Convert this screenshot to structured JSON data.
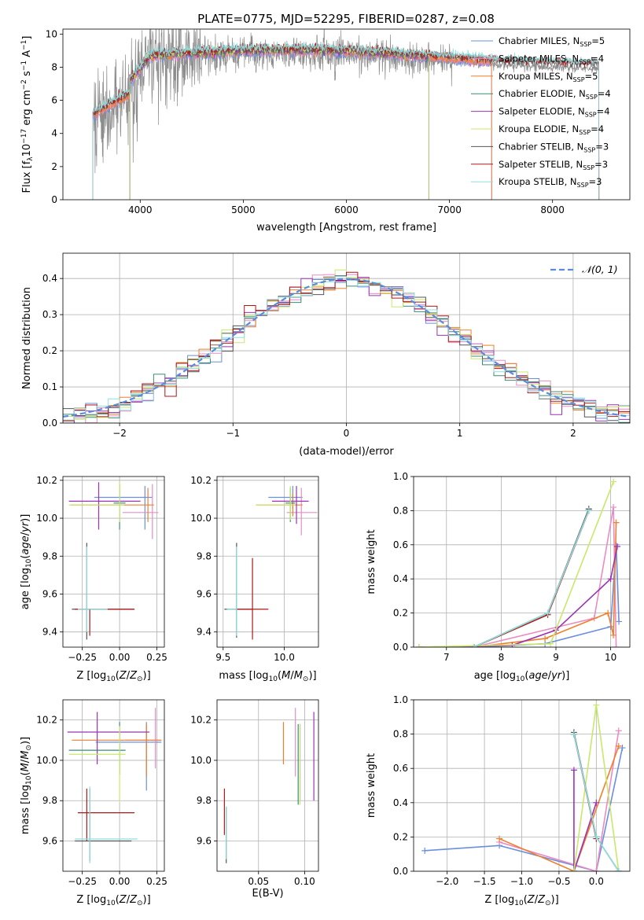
{
  "figure": {
    "title": "PLATE=0775, MJD=52295, FIBERID=0287, z=0.08"
  },
  "colors": {
    "chabrier_miles": "#6a8fde",
    "salpeter_miles": "#e88cc4",
    "kroupa_miles": "#f07f2a",
    "chabrier_elodie": "#3c8c78",
    "salpeter_elodie": "#9b34b4",
    "kroupa_elodie": "#c8e86a",
    "chabrier_stelib": "#555555",
    "salpeter_stelib": "#b01818",
    "kroupa_stelib": "#8ee0e0",
    "data": "#8c8c8c",
    "gaussian": "#5b8cdb",
    "grid": "#b0b0b0"
  },
  "chart_data": [
    {
      "id": "spectrum",
      "type": "line",
      "xlabel": "wavelength [Angstrom, rest frame]",
      "ylabel": "Flux [f_λ10^-17 erg cm^-2 s^-1 A^-1]",
      "xlim": [
        3250,
        8750
      ],
      "ylim": [
        0,
        10.3
      ],
      "xticks": [
        4000,
        5000,
        6000,
        7000,
        8000
      ],
      "yticks": [
        0,
        2,
        4,
        6,
        8,
        10
      ],
      "grid": false,
      "legend_position": "top-right",
      "observed_flux_range": [
        3550,
        8450
      ],
      "series": [
        {
          "name": "Chabrier MILES, N_SSP=5",
          "key": "chabrier_miles",
          "x": [
            3540,
            7410
          ]
        },
        {
          "name": "Salpeter MILES, N_SSP=4",
          "key": "salpeter_miles",
          "x": [
            3540,
            7410
          ]
        },
        {
          "name": "Kroupa MILES, N_SSP=5",
          "key": "kroupa_miles",
          "x": [
            3540,
            7410
          ]
        },
        {
          "name": "Chabrier ELODIE, N_SSP=4",
          "key": "chabrier_elodie",
          "x": [
            3900,
            6800
          ]
        },
        {
          "name": "Salpeter ELODIE, N_SSP=4",
          "key": "salpeter_elodie",
          "x": [
            3900,
            6800
          ]
        },
        {
          "name": "Kroupa ELODIE, N_SSP=4",
          "key": "kroupa_elodie",
          "x": [
            3900,
            6800
          ]
        },
        {
          "name": "Chabrier STELIB, N_SSP=3",
          "key": "chabrier_stelib",
          "x": [
            3540,
            8450
          ]
        },
        {
          "name": "Salpeter STELIB, N_SSP=3",
          "key": "salpeter_stelib",
          "x": [
            3540,
            8450
          ]
        },
        {
          "name": "Kroupa STELIB, N_SSP=3",
          "key": "kroupa_stelib",
          "x": [
            3540,
            8450
          ]
        }
      ]
    },
    {
      "id": "residuals",
      "type": "line",
      "xlabel": "(data-model)/error",
      "ylabel": "Normed distribution",
      "xlim": [
        -2.5,
        2.5
      ],
      "ylim": [
        0,
        0.47
      ],
      "xticks": [
        -2,
        -1,
        0,
        1,
        2
      ],
      "yticks": [
        0.0,
        0.1,
        0.2,
        0.3,
        0.4
      ],
      "grid": true,
      "legend_position": "top-right",
      "bin_width": 0.1,
      "series": [
        {
          "name": "𝒩(0, 1)",
          "key": "gaussian",
          "dashed": true
        }
      ]
    },
    {
      "id": "age_vs_Z",
      "type": "scatter",
      "xlabel": "Z [log10(Z/Z⊙)]",
      "ylabel": "age  [log10(age/yr)]",
      "xlim": [
        -0.38,
        0.3
      ],
      "ylim": [
        9.32,
        10.22
      ],
      "xticks": [
        -0.25,
        0.0,
        0.25
      ],
      "yticks": [
        9.4,
        9.6,
        9.8,
        10.0,
        10.2
      ],
      "grid": true,
      "points": [
        {
          "key": "chabrier_miles",
          "x": 0.17,
          "y": 10.11,
          "xerr": [
            0.34,
            0.05
          ],
          "yerr": [
            0.17,
            0.06
          ]
        },
        {
          "key": "salpeter_miles",
          "x": 0.22,
          "y": 10.03,
          "xerr": [
            0.2,
            0.04
          ],
          "yerr": [
            0.14,
            0.15
          ]
        },
        {
          "key": "kroupa_miles",
          "x": 0.19,
          "y": 10.07,
          "xerr": [
            0.52,
            0.04
          ],
          "yerr": [
            0.09,
            0.09
          ]
        },
        {
          "key": "chabrier_elodie",
          "x": 0.0,
          "y": 10.08,
          "xerr": [
            0.04,
            0.04
          ],
          "yerr": [
            0.14,
            0.1
          ]
        },
        {
          "key": "salpeter_elodie",
          "x": -0.14,
          "y": 10.09,
          "xerr": [
            0.2,
            0.28
          ],
          "yerr": [
            0.15,
            0.1
          ]
        },
        {
          "key": "kroupa_elodie",
          "x": 0.0,
          "y": 10.07,
          "xerr": [
            0.34,
            0.03
          ],
          "yerr": [
            0.09,
            0.12
          ]
        },
        {
          "key": "chabrier_stelib",
          "x": -0.22,
          "y": 9.52,
          "xerr": [
            0.1,
            0.32
          ],
          "yerr": [
            0.16,
            0.35
          ]
        },
        {
          "key": "salpeter_stelib",
          "x": -0.2,
          "y": 9.52,
          "xerr": [
            0.1,
            0.3
          ],
          "yerr": [
            0.14,
            0.0
          ]
        },
        {
          "key": "kroupa_stelib",
          "x": -0.22,
          "y": 9.52,
          "xerr": [
            0.06,
            0.14
          ],
          "yerr": [
            0.12,
            0.33
          ]
        }
      ]
    },
    {
      "id": "age_vs_mass",
      "type": "scatter",
      "xlabel": "mass [log10(M/M⊙)]",
      "ylabel": "",
      "xlim": [
        9.45,
        10.28
      ],
      "ylim": [
        9.32,
        10.22
      ],
      "xticks": [
        9.5,
        10.0
      ],
      "yticks": [
        9.4,
        9.6,
        9.8,
        10.0,
        10.2
      ],
      "grid": true,
      "points": [
        {
          "key": "chabrier_miles",
          "x": 10.07,
          "y": 10.11,
          "xerr": [
            0.2,
            0.08
          ],
          "yerr": [
            0.06,
            0.06
          ]
        },
        {
          "key": "salpeter_miles",
          "x": 10.14,
          "y": 10.03,
          "xerr": [
            0.12,
            0.13
          ],
          "yerr": [
            0.12,
            0.13
          ]
        },
        {
          "key": "kroupa_miles",
          "x": 10.07,
          "y": 10.07,
          "xerr": [
            0.3,
            0.08
          ],
          "yerr": [
            0.06,
            0.06
          ]
        },
        {
          "key": "chabrier_elodie",
          "x": 10.05,
          "y": 10.08,
          "xerr": [
            0.04,
            0.04
          ],
          "yerr": [
            0.1,
            0.08
          ]
        },
        {
          "key": "salpeter_elodie",
          "x": 10.1,
          "y": 10.09,
          "xerr": [
            0.2,
            0.1
          ],
          "yerr": [
            0.12,
            0.08
          ]
        },
        {
          "key": "kroupa_elodie",
          "x": 10.05,
          "y": 10.07,
          "xerr": [
            0.28,
            0.04
          ],
          "yerr": [
            0.08,
            0.1
          ]
        },
        {
          "key": "chabrier_stelib",
          "x": 9.61,
          "y": 9.52,
          "xerr": [
            0.1,
            0.13
          ],
          "yerr": [
            0.15,
            0.35
          ]
        },
        {
          "key": "salpeter_stelib",
          "x": 9.74,
          "y": 9.52,
          "xerr": [
            0.14,
            0.13
          ],
          "yerr": [
            0.16,
            0.27
          ]
        },
        {
          "key": "kroupa_stelib",
          "x": 9.61,
          "y": 9.52,
          "xerr": [
            0.08,
            0.0
          ],
          "yerr": [
            0.14,
            0.33
          ]
        }
      ]
    },
    {
      "id": "massweight_vs_age",
      "type": "line",
      "xlabel": "age  [log10(age/yr)]",
      "ylabel": "mass weight",
      "xlim": [
        6.4,
        10.35
      ],
      "ylim": [
        0,
        1.0
      ],
      "xticks": [
        7,
        8,
        9,
        10
      ],
      "yticks": [
        0.0,
        0.2,
        0.4,
        0.6,
        0.8,
        1.0
      ],
      "grid": true,
      "series": [
        {
          "key": "chabrier_miles",
          "x": [
            7.5,
            8.8,
            10.0,
            10.1,
            10.15
          ],
          "y": [
            0.0,
            0.02,
            0.12,
            0.6,
            0.15
          ]
        },
        {
          "key": "salpeter_miles",
          "x": [
            7.5,
            9.7,
            10.05,
            10.1
          ],
          "y": [
            0.0,
            0.17,
            0.82,
            0.0
          ]
        },
        {
          "key": "kroupa_miles",
          "x": [
            7.5,
            8.8,
            9.95,
            10.05,
            10.1
          ],
          "y": [
            0.0,
            0.05,
            0.2,
            0.07,
            0.73
          ]
        },
        {
          "key": "chabrier_elodie",
          "x": [
            7.5,
            8.85,
            9.6
          ],
          "y": [
            0.0,
            0.2,
            0.8
          ]
        },
        {
          "key": "salpeter_elodie",
          "x": [
            6.5,
            8.2,
            9.0,
            10.0,
            10.12
          ],
          "y": [
            0.0,
            0.01,
            0.1,
            0.4,
            0.59
          ]
        },
        {
          "key": "kroupa_elodie",
          "x": [
            6.5,
            8.9,
            10.05
          ],
          "y": [
            0.0,
            0.02,
            0.97
          ]
        },
        {
          "key": "chabrier_stelib",
          "x": [
            7.5,
            8.85,
            9.6
          ],
          "y": [
            0.0,
            0.2,
            0.81
          ]
        },
        {
          "key": "salpeter_stelib",
          "x": [
            7.5,
            8.85,
            9.6
          ],
          "y": [
            0.0,
            0.19,
            0.8
          ]
        },
        {
          "key": "kroupa_stelib",
          "x": [
            7.5,
            8.85,
            9.6
          ],
          "y": [
            0.0,
            0.2,
            0.8
          ]
        }
      ]
    },
    {
      "id": "mass_vs_Z",
      "type": "scatter",
      "xlabel": "Z [log10(Z/Z⊙)]",
      "ylabel": "mass [log10(M/M⊙)]",
      "xlim": [
        -0.38,
        0.3
      ],
      "ylim": [
        9.45,
        10.3
      ],
      "xticks": [
        -0.25,
        0.0,
        0.25
      ],
      "yticks": [
        9.6,
        9.8,
        10.0,
        10.2
      ],
      "grid": true,
      "points": [
        {
          "key": "chabrier_miles",
          "x": 0.18,
          "y": 10.09,
          "xerr": [
            0.34,
            0.1
          ],
          "yerr": [
            0.24,
            0.1
          ]
        },
        {
          "key": "salpeter_miles",
          "x": 0.24,
          "y": 10.1,
          "xerr": [
            0.2,
            0.04
          ],
          "yerr": [
            0.14,
            0.16
          ]
        },
        {
          "key": "kroupa_miles",
          "x": 0.18,
          "y": 10.1,
          "xerr": [
            0.5,
            0.1
          ],
          "yerr": [
            0.18,
            0.08
          ]
        },
        {
          "key": "chabrier_elodie",
          "x": 0.0,
          "y": 10.05,
          "xerr": [
            0.34,
            0.04
          ],
          "yerr": [
            0.12,
            0.14
          ]
        },
        {
          "key": "salpeter_elodie",
          "x": -0.15,
          "y": 10.14,
          "xerr": [
            0.2,
            0.35
          ],
          "yerr": [
            0.16,
            0.1
          ]
        },
        {
          "key": "kroupa_elodie",
          "x": 0.0,
          "y": 10.03,
          "xerr": [
            0.34,
            0.04
          ],
          "yerr": [
            0.24,
            0.14
          ]
        },
        {
          "key": "chabrier_stelib",
          "x": -0.2,
          "y": 9.6,
          "xerr": [
            0.1,
            0.28
          ],
          "yerr": [
            0.1,
            0.26
          ]
        },
        {
          "key": "salpeter_stelib",
          "x": -0.22,
          "y": 9.74,
          "xerr": [
            0.06,
            0.32
          ],
          "yerr": [
            0.14,
            0.12
          ]
        },
        {
          "key": "kroupa_stelib",
          "x": -0.2,
          "y": 9.61,
          "xerr": [
            0.1,
            0.32
          ],
          "yerr": [
            0.12,
            0.26
          ]
        }
      ]
    },
    {
      "id": "mass_vs_EBV",
      "type": "scatter",
      "xlabel": "E(B-V)",
      "ylabel": "",
      "xlim": [
        0.005,
        0.115
      ],
      "ylim": [
        9.45,
        10.3
      ],
      "xticks": [
        0.05,
        0.1
      ],
      "yticks": [
        9.6,
        9.8,
        10.0,
        10.2
      ],
      "grid": true,
      "points": [
        {
          "key": "chabrier_miles",
          "x": 0.095,
          "y": 10.0,
          "xerr": [
            0,
            0
          ],
          "yerr": [
            0.2,
            0.18
          ]
        },
        {
          "key": "salpeter_miles",
          "x": 0.09,
          "y": 10.1,
          "xerr": [
            0,
            0
          ],
          "yerr": [
            0.18,
            0.16
          ]
        },
        {
          "key": "kroupa_miles",
          "x": 0.077,
          "y": 10.08,
          "xerr": [
            0,
            0
          ],
          "yerr": [
            0.1,
            0.11
          ]
        },
        {
          "key": "chabrier_elodie",
          "x": 0.093,
          "y": 9.98,
          "xerr": [
            0,
            0
          ],
          "yerr": [
            0.2,
            0.2
          ]
        },
        {
          "key": "salpeter_elodie",
          "x": 0.11,
          "y": 10.02,
          "xerr": [
            0,
            0
          ],
          "yerr": [
            0.22,
            0.22
          ]
        },
        {
          "key": "kroupa_elodie",
          "x": 0.095,
          "y": 9.98,
          "xerr": [
            0,
            0
          ],
          "yerr": [
            0.2,
            0.2
          ]
        },
        {
          "key": "chabrier_stelib",
          "x": 0.015,
          "y": 9.6,
          "xerr": [
            0,
            0
          ],
          "yerr": [
            0.11,
            0.17
          ]
        },
        {
          "key": "salpeter_stelib",
          "x": 0.013,
          "y": 9.74,
          "xerr": [
            0,
            0
          ],
          "yerr": [
            0.11,
            0.12
          ]
        },
        {
          "key": "kroupa_stelib",
          "x": 0.015,
          "y": 9.62,
          "xerr": [
            0,
            0
          ],
          "yerr": [
            0.11,
            0.15
          ]
        }
      ]
    },
    {
      "id": "massweight_vs_Z",
      "type": "line",
      "xlabel": "Z [log10(Z/Z⊙)]",
      "ylabel": "mass weight",
      "xlim": [
        -2.45,
        0.45
      ],
      "ylim": [
        0,
        1.0
      ],
      "xticks": [
        -2.0,
        -1.5,
        -1.0,
        -0.5,
        0.0
      ],
      "yticks": [
        0.0,
        0.2,
        0.4,
        0.6,
        0.8,
        1.0
      ],
      "grid": true,
      "series": [
        {
          "key": "chabrier_miles",
          "x": [
            -2.3,
            -1.3,
            0.0,
            0.35
          ],
          "y": [
            0.12,
            0.15,
            0.0,
            0.72
          ]
        },
        {
          "key": "salpeter_miles",
          "x": [
            -1.3,
            0.0,
            0.3
          ],
          "y": [
            0.17,
            0.0,
            0.82
          ]
        },
        {
          "key": "kroupa_miles",
          "x": [
            -1.3,
            -0.3,
            0.3
          ],
          "y": [
            0.19,
            0.0,
            0.73
          ]
        },
        {
          "key": "chabrier_elodie",
          "x": [
            -0.3,
            0.0
          ],
          "y": [
            0.8,
            0.2
          ]
        },
        {
          "key": "salpeter_elodie",
          "x": [
            -0.3,
            -0.3,
            0.0
          ],
          "y": [
            0.59,
            0.0,
            0.4
          ]
        },
        {
          "key": "kroupa_elodie",
          "x": [
            -0.3,
            0.0,
            0.3
          ],
          "y": [
            0.0,
            0.97,
            0.0
          ]
        },
        {
          "key": "chabrier_stelib",
          "x": [
            -0.3,
            0.0,
            0.3
          ],
          "y": [
            0.81,
            0.2,
            0.0
          ]
        },
        {
          "key": "salpeter_stelib",
          "x": [
            -0.3,
            0.0
          ],
          "y": [
            0.8,
            0.19
          ]
        },
        {
          "key": "kroupa_stelib",
          "x": [
            -0.3,
            0.0,
            0.3
          ],
          "y": [
            0.8,
            0.2,
            0.0
          ]
        }
      ]
    }
  ]
}
